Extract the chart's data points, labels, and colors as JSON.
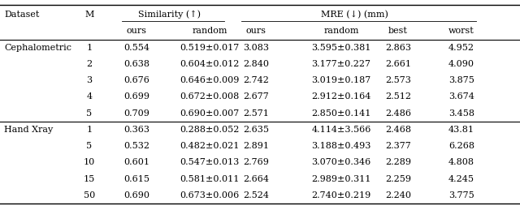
{
  "sections": [
    {
      "name": "Cephalometric",
      "rows": [
        [
          "1",
          "0.554",
          "0.519±0.017",
          "3.083",
          "3.595±0.381",
          "2.863",
          "4.952"
        ],
        [
          "2",
          "0.638",
          "0.604±0.012",
          "2.840",
          "3.177±0.227",
          "2.661",
          "4.090"
        ],
        [
          "3",
          "0.676",
          "0.646±0.009",
          "2.742",
          "3.019±0.187",
          "2.573",
          "3.875"
        ],
        [
          "4",
          "0.699",
          "0.672±0.008",
          "2.677",
          "2.912±0.164",
          "2.512",
          "3.674"
        ],
        [
          "5",
          "0.709",
          "0.690±0.007",
          "2.571",
          "2.850±0.141",
          "2.486",
          "3.458"
        ]
      ]
    },
    {
      "name": "Hand Xray",
      "rows": [
        [
          "1",
          "0.363",
          "0.288±0.052",
          "2.635",
          "4.114±3.566",
          "2.468",
          "43.81"
        ],
        [
          "5",
          "0.532",
          "0.482±0.021",
          "2.891",
          "3.188±0.493",
          "2.377",
          "6.268"
        ],
        [
          "10",
          "0.601",
          "0.547±0.013",
          "2.769",
          "3.070±0.346",
          "2.289",
          "4.808"
        ],
        [
          "15",
          "0.615",
          "0.581±0.011",
          "2.664",
          "2.989±0.311",
          "2.259",
          "4.245"
        ],
        [
          "50",
          "0.690",
          "0.673±0.006",
          "2.524",
          "2.740±0.219",
          "2.240",
          "3.775"
        ]
      ]
    }
  ],
  "font_size": 8.0,
  "bg_color": "white",
  "text_color": "black"
}
